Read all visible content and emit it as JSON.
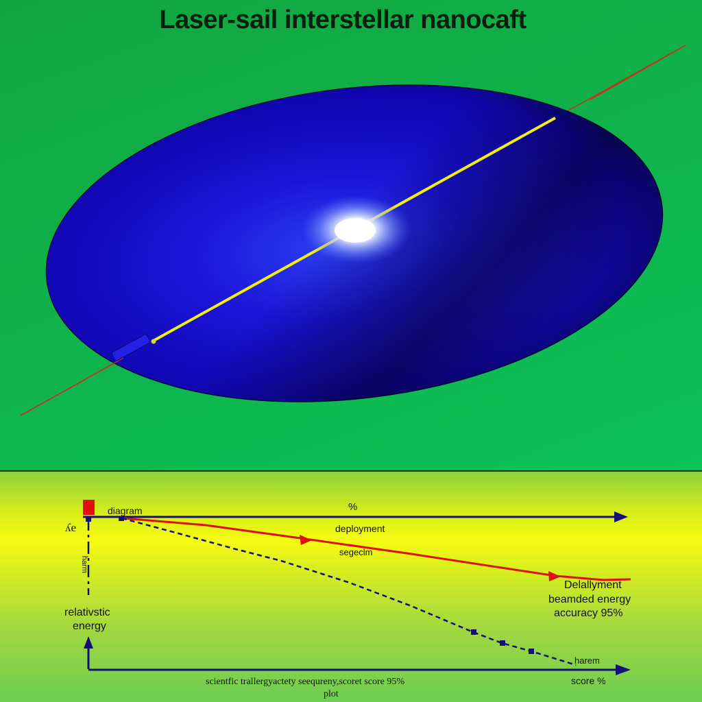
{
  "title": "Laser-sail interstellar nanocaft",
  "colors": {
    "background": "#16b44a",
    "sail": "#1a10d8",
    "beam_axis": "#f4ee10",
    "laser_line": "#d42a1a",
    "plot_axis": "#14107a",
    "curve_red": "#e01010",
    "curve_dashed": "#14107a"
  },
  "plot": {
    "top_label": "%",
    "diagram_label": "diagram",
    "deployment_label": "deployment",
    "segment_label": "segeclm",
    "y_tick_label": "ʎe",
    "y_vertical_label": "ɯɹɐɥ",
    "y_axis_label_line1": "relativstic",
    "y_axis_label_line2": "energy",
    "right_label_line1": "Delallyment",
    "right_label_line2": "beamded energy",
    "right_label_line3": "accuracy 95%",
    "harem_label": "harem",
    "x_axis_label_line1": "scientfic trallergyactety seequreny,scoret  score 95%",
    "x_axis_label_line2": "plot",
    "x_end_label": "score %"
  }
}
